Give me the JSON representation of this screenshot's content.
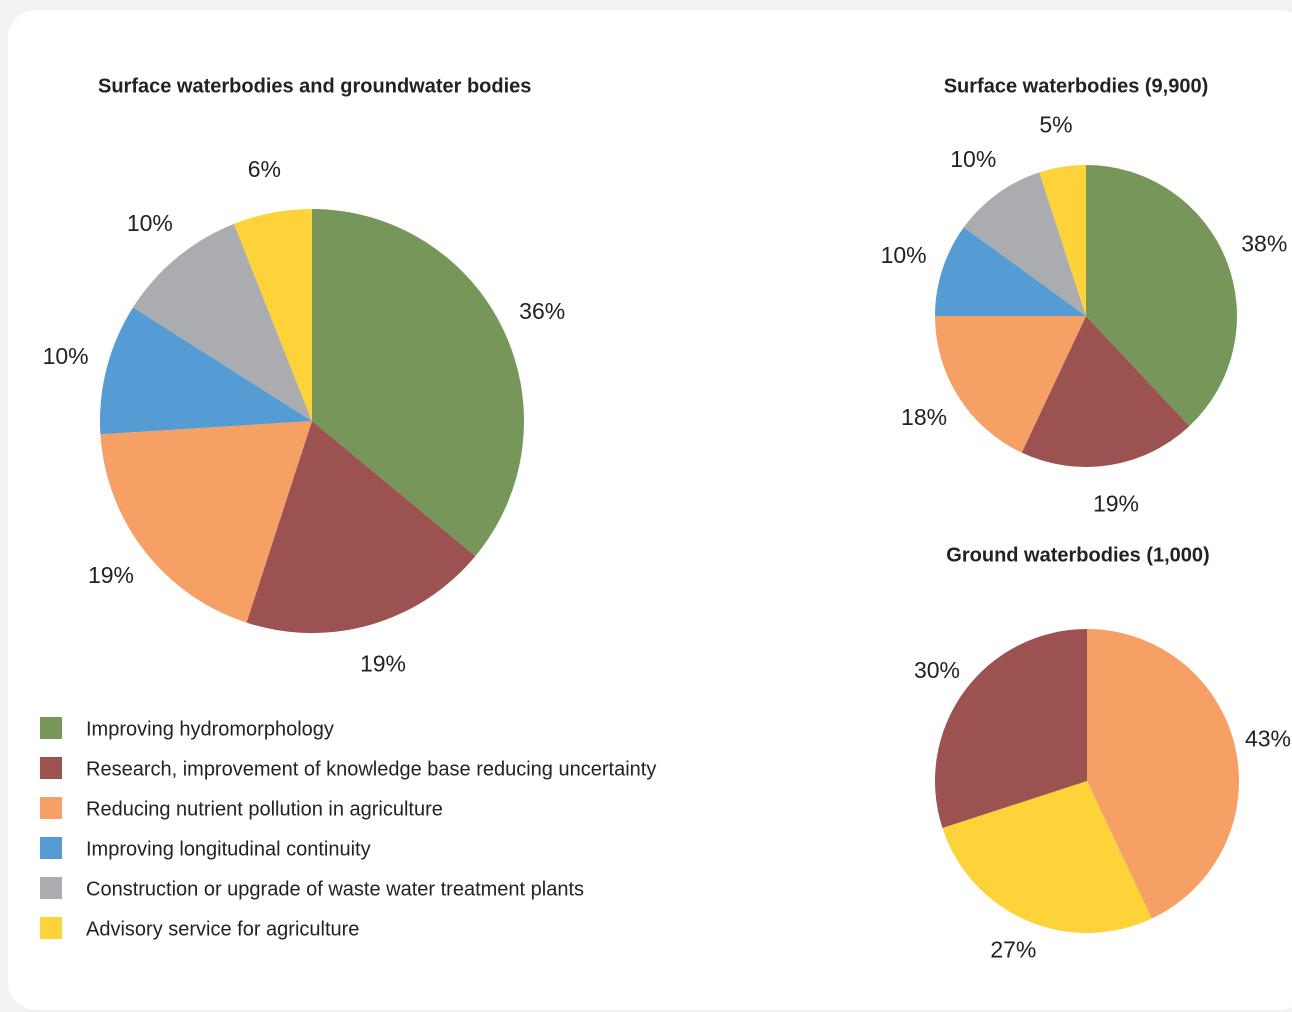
{
  "chart_data": [
    {
      "type": "pie",
      "title": "Surface waterbodies and groundwater bodies",
      "categories": [
        "Improving hydromorphology",
        "Research, improvement of knowledge base reducing uncertainty",
        "Reducing nutrient pollution in agriculture",
        "Improving longitudinal continuity",
        "Construction or upgrade of waste water treatment plants",
        "Advisory service for agriculture"
      ],
      "values": [
        36,
        19,
        19,
        10,
        10,
        6
      ],
      "value_labels": [
        "36%",
        "19%",
        "19%",
        "10%",
        "10%",
        "6%"
      ],
      "colors": [
        "#77975a",
        "#9c5250",
        "#f6a066",
        "#559bd4",
        "#aaacb0",
        "#fed33a"
      ]
    },
    {
      "type": "pie",
      "title": "Surface waterbodies (9,900)",
      "values": [
        38,
        19,
        18,
        10,
        10,
        5
      ],
      "value_labels": [
        "38%",
        "19%",
        "18%",
        "10%",
        "10%",
        "5%"
      ],
      "colors": [
        "#77975a",
        "#9c5250",
        "#f6a066",
        "#559bd4",
        "#aaacb0",
        "#fed33a"
      ]
    },
    {
      "type": "pie",
      "title": "Ground waterbodies (1,000)",
      "values": [
        43,
        27,
        30
      ],
      "value_labels": [
        "43%",
        "27%",
        "30%"
      ],
      "colors": [
        "#f6a066",
        "#fed33a",
        "#9c5250"
      ]
    }
  ]
}
